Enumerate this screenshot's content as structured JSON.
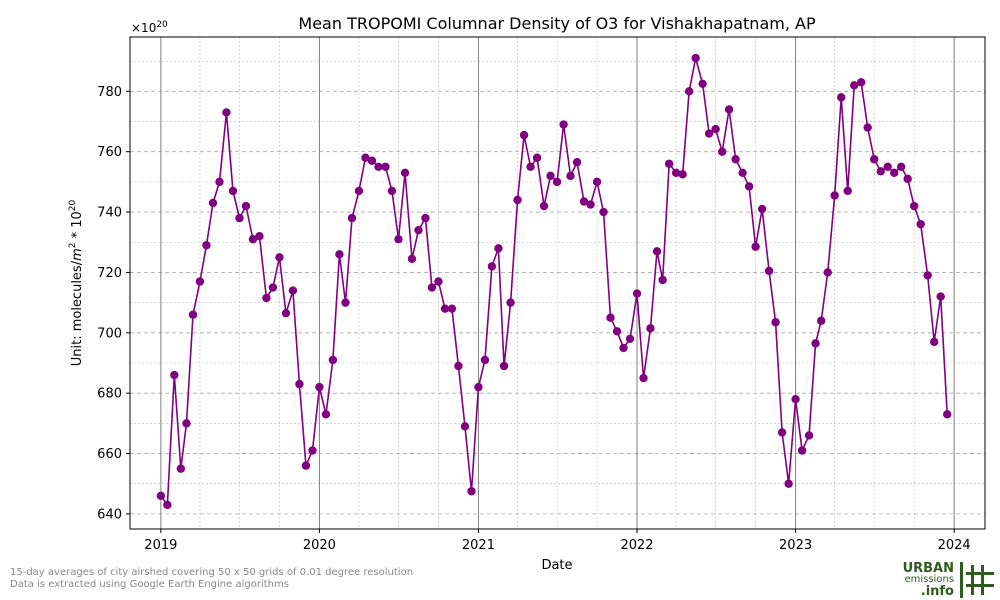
{
  "chart_data": {
    "type": "line",
    "title": "Mean TROPOMI Columnar Density of O3 for Vishakhapatnam, AP",
    "xlabel": "Date",
    "ylabel_prefix": "Unit: molecules/",
    "ylabel_m": "m",
    "ylabel_m_exp": "2",
    "ylabel_mid": " * 10",
    "ylabel_exp": "20",
    "offset_base": "×10",
    "offset_exp": "20",
    "x_ticks": [
      "2019",
      "2020",
      "2021",
      "2022",
      "2023",
      "2024"
    ],
    "y_ticks": [
      "640",
      "660",
      "680",
      "700",
      "720",
      "740",
      "760",
      "780"
    ],
    "ylim": [
      635,
      798
    ],
    "xlim": [
      "2018-10-22",
      "2024-03-12"
    ],
    "grid": true,
    "series": [
      {
        "color": "#800080",
        "marker": "circle",
        "x": [
          "2019-01-01",
          "2019-01-16",
          "2019-02-01",
          "2019-02-16",
          "2019-03-01",
          "2019-03-16",
          "2019-04-01",
          "2019-04-16",
          "2019-05-01",
          "2019-05-16",
          "2019-06-01",
          "2019-06-16",
          "2019-07-01",
          "2019-07-16",
          "2019-08-01",
          "2019-08-16",
          "2019-09-01",
          "2019-09-16",
          "2019-10-01",
          "2019-10-16",
          "2019-11-01",
          "2019-11-16",
          "2019-12-01",
          "2019-12-16",
          "2020-01-01",
          "2020-01-16",
          "2020-02-01",
          "2020-02-16",
          "2020-03-01",
          "2020-03-16",
          "2020-04-01",
          "2020-04-16",
          "2020-05-01",
          "2020-05-16",
          "2020-06-01",
          "2020-06-16",
          "2020-07-01",
          "2020-07-16",
          "2020-08-01",
          "2020-08-16",
          "2020-09-01",
          "2020-09-16",
          "2020-10-01",
          "2020-10-16",
          "2020-11-01",
          "2020-11-16",
          "2020-12-01",
          "2020-12-16",
          "2021-01-01",
          "2021-01-16",
          "2021-02-01",
          "2021-02-16",
          "2021-03-01",
          "2021-03-16",
          "2021-04-01",
          "2021-04-16",
          "2021-05-01",
          "2021-05-16",
          "2021-06-01",
          "2021-06-16",
          "2021-07-01",
          "2021-07-16",
          "2021-08-01",
          "2021-08-16",
          "2021-09-01",
          "2021-09-16",
          "2021-10-01",
          "2021-10-16",
          "2021-11-01",
          "2021-11-16",
          "2021-12-01",
          "2021-12-16",
          "2022-01-01",
          "2022-01-16",
          "2022-02-01",
          "2022-02-16",
          "2022-03-01",
          "2022-03-16",
          "2022-04-01",
          "2022-04-16",
          "2022-05-01",
          "2022-05-16",
          "2022-06-01",
          "2022-06-16",
          "2022-07-01",
          "2022-07-16",
          "2022-08-01",
          "2022-08-16",
          "2022-09-01",
          "2022-09-16",
          "2022-10-01",
          "2022-10-16",
          "2022-11-01",
          "2022-11-16",
          "2022-12-01",
          "2022-12-16",
          "2023-01-01",
          "2023-01-16",
          "2023-02-01",
          "2023-02-16",
          "2023-03-01",
          "2023-03-16",
          "2023-04-01",
          "2023-04-16",
          "2023-05-01",
          "2023-05-16",
          "2023-06-01",
          "2023-06-16",
          "2023-07-01",
          "2023-07-16",
          "2023-08-01",
          "2023-08-16",
          "2023-09-01",
          "2023-09-16",
          "2023-10-01",
          "2023-10-16",
          "2023-11-01",
          "2023-11-16",
          "2023-12-01",
          "2023-12-16"
        ],
        "y": [
          646,
          643,
          686,
          655,
          670,
          706,
          717,
          729,
          743,
          750,
          773,
          747,
          738,
          742,
          731,
          732,
          711.5,
          715,
          725,
          706.5,
          714,
          683,
          656,
          661,
          682,
          673,
          691,
          726,
          710,
          738,
          747,
          758,
          757,
          755,
          755,
          747,
          731,
          753,
          724.5,
          734,
          738,
          715,
          717,
          708,
          708,
          689,
          669,
          647.5,
          682,
          691,
          722,
          728,
          689,
          710,
          744,
          765.5,
          755,
          758,
          742,
          752,
          750,
          769,
          752,
          756.5,
          743.5,
          742.5,
          750,
          740,
          705,
          700.5,
          695,
          698,
          713,
          685,
          701.5,
          727,
          717.5,
          756,
          753,
          752.5,
          780,
          791,
          782.5,
          766,
          767.5,
          760,
          774,
          757.5,
          753,
          748.5,
          728.5,
          741,
          720.5,
          703.5,
          667,
          650,
          678,
          661,
          666,
          696.5,
          704,
          720,
          745.5,
          778,
          747,
          782,
          783,
          768,
          757.5,
          753.5,
          755,
          753,
          755,
          751,
          742,
          736,
          719,
          697,
          712,
          673
        ]
      }
    ]
  },
  "footnote": {
    "line1": "15-day averages of city airshed covering 50 x 50 grids of 0.01 degree resolution",
    "line2": "Data is extracted using Google Earth Engine algorithms"
  },
  "logo": {
    "word1": "URBAN",
    "word2": "emissions",
    "word3": ".info",
    "color": "#2e5c1e",
    "icon": "hash-grid-icon"
  }
}
